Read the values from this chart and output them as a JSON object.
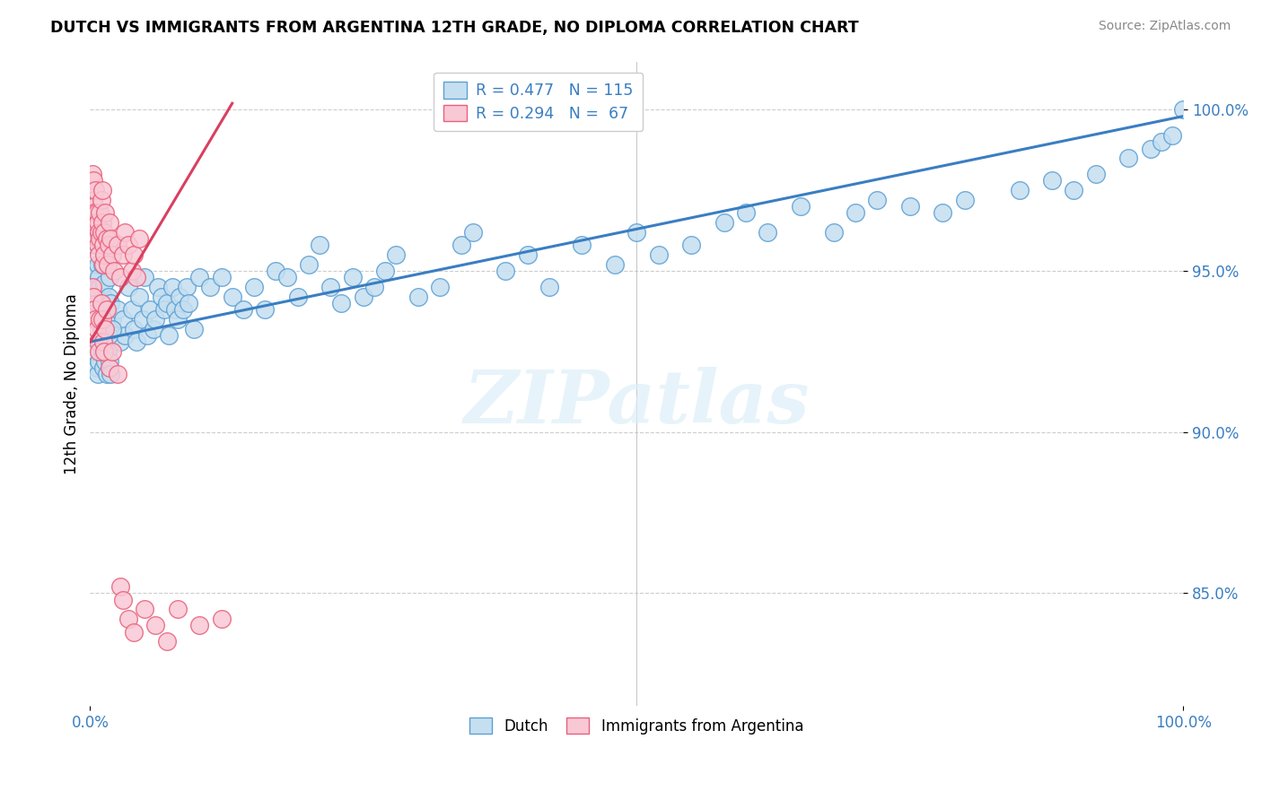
{
  "title": "DUTCH VS IMMIGRANTS FROM ARGENTINA 12TH GRADE, NO DIPLOMA CORRELATION CHART",
  "source": "Source: ZipAtlas.com",
  "ylabel": "12th Grade, No Diploma",
  "xlim": [
    0.0,
    1.0
  ],
  "ylim": [
    0.815,
    1.015
  ],
  "ytick_positions": [
    0.85,
    0.9,
    0.95,
    1.0
  ],
  "legend_entries": [
    {
      "label": "R = 0.477   N = 115",
      "color": "#aecce8"
    },
    {
      "label": "R = 0.294   N =  67",
      "color": "#f5b8c8"
    }
  ],
  "watermark": "ZIPatlas",
  "blue_fill": "#c5dff0",
  "blue_edge": "#5b9fd4",
  "pink_fill": "#f9c8d5",
  "pink_edge": "#e8607a",
  "blue_line_color": "#3a7ec2",
  "pink_line_color": "#d94060",
  "legend_text_color": "#3a7ec2",
  "background_color": "#ffffff",
  "grid_color": "#c8c8c8",
  "blue_scatter_x": [
    0.003,
    0.004,
    0.005,
    0.006,
    0.007,
    0.008,
    0.008,
    0.009,
    0.01,
    0.011,
    0.012,
    0.013,
    0.014,
    0.015,
    0.015,
    0.016,
    0.017,
    0.018,
    0.019,
    0.02,
    0.022,
    0.025,
    0.028,
    0.03,
    0.032,
    0.035,
    0.038,
    0.04,
    0.042,
    0.045,
    0.048,
    0.05,
    0.052,
    0.055,
    0.058,
    0.06,
    0.062,
    0.065,
    0.068,
    0.07,
    0.072,
    0.075,
    0.078,
    0.08,
    0.082,
    0.085,
    0.088,
    0.09,
    0.095,
    0.1,
    0.11,
    0.12,
    0.13,
    0.14,
    0.15,
    0.16,
    0.17,
    0.18,
    0.19,
    0.2,
    0.21,
    0.22,
    0.23,
    0.24,
    0.25,
    0.26,
    0.27,
    0.28,
    0.3,
    0.32,
    0.34,
    0.35,
    0.38,
    0.4,
    0.42,
    0.45,
    0.48,
    0.5,
    0.52,
    0.55,
    0.58,
    0.6,
    0.62,
    0.65,
    0.68,
    0.7,
    0.72,
    0.75,
    0.78,
    0.8,
    0.85,
    0.88,
    0.9,
    0.92,
    0.95,
    0.97,
    0.98,
    0.99,
    1.0,
    0.005,
    0.006,
    0.007,
    0.008,
    0.009,
    0.01,
    0.011,
    0.012,
    0.013,
    0.014,
    0.015,
    0.016,
    0.017,
    0.018,
    0.019,
    0.02
  ],
  "blue_scatter_y": [
    0.95,
    0.958,
    0.945,
    0.94,
    0.952,
    0.96,
    0.948,
    0.945,
    0.938,
    0.952,
    0.942,
    0.946,
    0.935,
    0.94,
    0.928,
    0.935,
    0.942,
    0.948,
    0.94,
    0.935,
    0.93,
    0.938,
    0.928,
    0.935,
    0.93,
    0.945,
    0.938,
    0.932,
    0.928,
    0.942,
    0.935,
    0.948,
    0.93,
    0.938,
    0.932,
    0.935,
    0.945,
    0.942,
    0.938,
    0.94,
    0.93,
    0.945,
    0.938,
    0.935,
    0.942,
    0.938,
    0.945,
    0.94,
    0.932,
    0.948,
    0.945,
    0.948,
    0.942,
    0.938,
    0.945,
    0.938,
    0.95,
    0.948,
    0.942,
    0.952,
    0.958,
    0.945,
    0.94,
    0.948,
    0.942,
    0.945,
    0.95,
    0.955,
    0.942,
    0.945,
    0.958,
    0.962,
    0.95,
    0.955,
    0.945,
    0.958,
    0.952,
    0.962,
    0.955,
    0.958,
    0.965,
    0.968,
    0.962,
    0.97,
    0.962,
    0.968,
    0.972,
    0.97,
    0.968,
    0.972,
    0.975,
    0.978,
    0.975,
    0.98,
    0.985,
    0.988,
    0.99,
    0.992,
    1.0,
    0.925,
    0.92,
    0.918,
    0.922,
    0.928,
    0.932,
    0.925,
    0.92,
    0.928,
    0.922,
    0.918,
    0.925,
    0.93,
    0.922,
    0.918,
    0.932
  ],
  "pink_scatter_x": [
    0.002,
    0.003,
    0.003,
    0.004,
    0.004,
    0.005,
    0.005,
    0.006,
    0.006,
    0.007,
    0.007,
    0.008,
    0.008,
    0.009,
    0.009,
    0.01,
    0.01,
    0.011,
    0.011,
    0.012,
    0.012,
    0.013,
    0.013,
    0.014,
    0.015,
    0.016,
    0.017,
    0.018,
    0.019,
    0.02,
    0.022,
    0.025,
    0.028,
    0.03,
    0.032,
    0.035,
    0.038,
    0.04,
    0.042,
    0.045,
    0.002,
    0.003,
    0.004,
    0.005,
    0.006,
    0.007,
    0.008,
    0.009,
    0.01,
    0.011,
    0.012,
    0.013,
    0.014,
    0.015,
    0.018,
    0.02,
    0.025,
    0.028,
    0.03,
    0.035,
    0.04,
    0.05,
    0.06,
    0.07,
    0.08,
    0.1,
    0.12
  ],
  "pink_scatter_y": [
    0.98,
    0.978,
    0.972,
    0.97,
    0.968,
    0.975,
    0.965,
    0.968,
    0.96,
    0.965,
    0.958,
    0.962,
    0.955,
    0.968,
    0.96,
    0.972,
    0.962,
    0.975,
    0.965,
    0.958,
    0.952,
    0.962,
    0.955,
    0.968,
    0.96,
    0.952,
    0.958,
    0.965,
    0.96,
    0.955,
    0.95,
    0.958,
    0.948,
    0.955,
    0.962,
    0.958,
    0.95,
    0.955,
    0.948,
    0.96,
    0.945,
    0.942,
    0.938,
    0.935,
    0.932,
    0.928,
    0.925,
    0.935,
    0.94,
    0.935,
    0.928,
    0.925,
    0.932,
    0.938,
    0.92,
    0.925,
    0.918,
    0.852,
    0.848,
    0.842,
    0.838,
    0.845,
    0.84,
    0.835,
    0.845,
    0.84,
    0.842
  ],
  "blue_trend_x": [
    0.0,
    1.0
  ],
  "blue_trend_y": [
    0.928,
    0.998
  ],
  "pink_trend_x": [
    0.0,
    0.13
  ],
  "pink_trend_y": [
    0.928,
    1.002
  ]
}
